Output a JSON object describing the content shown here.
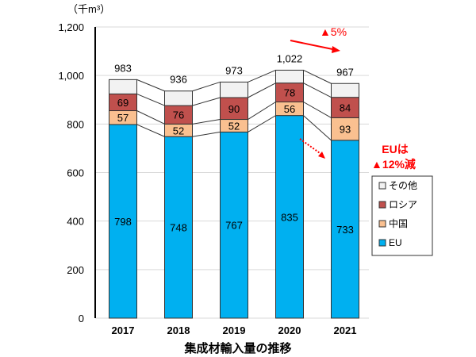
{
  "chart_data": {
    "type": "bar",
    "stacked": true,
    "title": "集成材輸入量の推移",
    "ylabel": "（千m³）",
    "ylim": [
      0,
      1200
    ],
    "yticks": [
      0,
      200,
      400,
      600,
      800,
      1000,
      1200
    ],
    "ytick_labels": [
      "0",
      "200",
      "400",
      "600",
      "800",
      "1,000",
      "1,200"
    ],
    "categories": [
      "2017",
      "2018",
      "2019",
      "2020",
      "2021"
    ],
    "series": [
      {
        "name": "EU",
        "values": [
          798,
          748,
          767,
          835,
          733
        ],
        "color": "#00b0f0",
        "labeled": true
      },
      {
        "name": "中国",
        "values": [
          57,
          52,
          52,
          56,
          93
        ],
        "color": "#fac090",
        "labeled": true
      },
      {
        "name": "ロシア",
        "values": [
          69,
          76,
          90,
          78,
          84
        ],
        "color": "#c0504d",
        "labeled": true
      },
      {
        "name": "その他",
        "values": [
          59,
          60,
          64,
          53,
          57
        ],
        "color": "#f2f2f2",
        "labeled": false
      }
    ],
    "totals": [
      983,
      936,
      973,
      1022,
      967
    ],
    "total_labels": [
      "983",
      "936",
      "973",
      "1,022",
      "967"
    ],
    "grid": true,
    "legend_placement": "right",
    "annotations": [
      {
        "text": "▲5%",
        "color": "#ff0000"
      },
      {
        "text": "EUは",
        "color": "#ff0000"
      },
      {
        "text": "▲12%減",
        "color": "#ff0000"
      }
    ]
  }
}
